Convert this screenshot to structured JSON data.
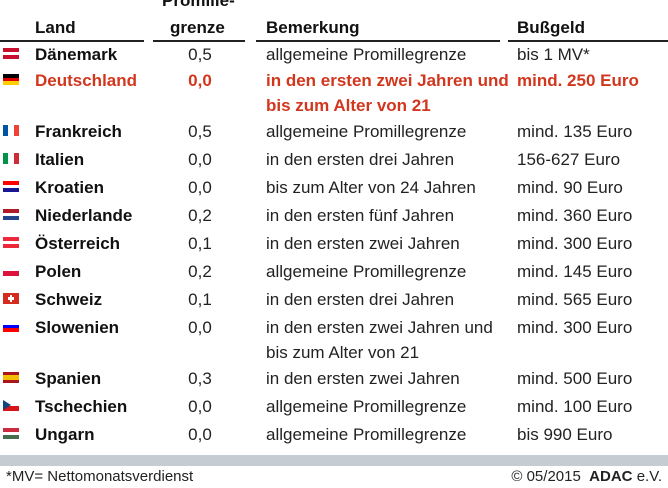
{
  "header": {
    "land": "Land",
    "promille_1": "Promille-",
    "promille_2": "grenze",
    "bemerkung": "Bemerkung",
    "bussgeld": "Bußgeld"
  },
  "rows": [
    {
      "flag": [
        "#c8102e",
        "#fff",
        "#c8102e"
      ],
      "land": "Dänemark",
      "promille": "0,5",
      "bemerkung": "allgemeine Promillegrenze",
      "bussgeld": "bis 1 MV*"
    },
    {
      "flag": [
        "#000",
        "#dd0000",
        "#ffce00"
      ],
      "land": "Deutschland",
      "promille": "0,0",
      "bemerkung": "in den ersten zwei Jahren und bis zum Alter von 21",
      "bussgeld": "mind. 250 Euro",
      "highlight": true
    },
    {
      "flag": [
        "#0055a4",
        "#fff",
        "#ef4135"
      ],
      "vertical": true,
      "land": "Frankreich",
      "promille": "0,5",
      "bemerkung": "allgemeine Promillegrenze",
      "bussgeld": "mind. 135 Euro"
    },
    {
      "flag": [
        "#009246",
        "#fff",
        "#ce2b37"
      ],
      "vertical": true,
      "land": "Italien",
      "promille": "0,0",
      "bemerkung": "in den ersten drei Jahren",
      "bussgeld": "156-627 Euro"
    },
    {
      "flag": [
        "#ff0000",
        "#fff",
        "#171796"
      ],
      "land": "Kroatien",
      "promille": "0,0",
      "bemerkung": "bis zum Alter von 24 Jahren",
      "bussgeld": "mind. 90 Euro"
    },
    {
      "flag": [
        "#ae1c28",
        "#fff",
        "#21468b"
      ],
      "land": "Niederlande",
      "promille": "0,2",
      "bemerkung": "in den ersten fünf Jahren",
      "bussgeld": "mind. 360 Euro"
    },
    {
      "flag": [
        "#ed2939",
        "#fff",
        "#ed2939"
      ],
      "land": "Österreich",
      "promille": "0,1",
      "bemerkung": "in den ersten zwei Jahren",
      "bussgeld": "mind. 300 Euro"
    },
    {
      "flag": [
        "#fff",
        "#dc143c"
      ],
      "land": "Polen",
      "promille": "0,2",
      "bemerkung": "allgemeine Promillegrenze",
      "bussgeld": "mind. 145 Euro"
    },
    {
      "flag": [
        "#d52b1e"
      ],
      "cross": true,
      "land": "Schweiz",
      "promille": "0,1",
      "bemerkung": "in den ersten drei Jahren",
      "bussgeld": "mind. 565 Euro"
    },
    {
      "flag": [
        "#fff",
        "#0000ff",
        "#ff0000"
      ],
      "land": "Slowenien",
      "promille": "0,0",
      "bemerkung": "in den ersten zwei Jahren und bis zum Alter von 21",
      "bussgeld": "mind. 300 Euro"
    },
    {
      "flag": [
        "#aa151b",
        "#f1bf00",
        "#f1bf00",
        "#aa151b"
      ],
      "land": "Spanien",
      "promille": "0,3",
      "bemerkung": "in den ersten zwei Jahren",
      "bussgeld": "mind. 500 Euro"
    },
    {
      "flag": [
        "#fff",
        "#d7141a"
      ],
      "czech": true,
      "land": "Tschechien",
      "promille": "0,0",
      "bemerkung": "allgemeine Promillegrenze",
      "bussgeld": "mind. 100 Euro"
    },
    {
      "flag": [
        "#cd2a3e",
        "#fff",
        "#436f4d"
      ],
      "land": "Ungarn",
      "promille": "0,0",
      "bemerkung": "allgemeine Promillegrenze",
      "bussgeld": "bis 990 Euro"
    }
  ],
  "footer": {
    "note": "*MV= Nettomonatsverdienst",
    "copyright": "© 05/2015",
    "brand": "ADAC",
    "brand_suffix": "e.V."
  }
}
